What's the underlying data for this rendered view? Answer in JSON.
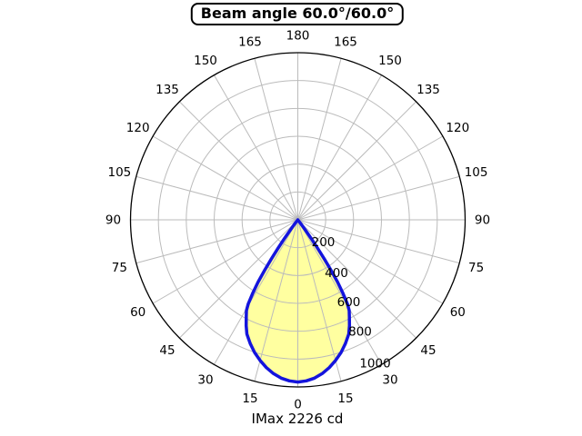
{
  "chart_data": {
    "type": "polar",
    "title": "Beam angle 60.0°/60.0°",
    "footer": "IMax 2226 cd",
    "imax_cd": 2226,
    "beam_angle_deg": [
      60.0,
      60.0
    ],
    "orientation": "0 deg at bottom, 180 deg at top, mirrored left/right",
    "angular_tick_step_deg": 15,
    "angular_tick_labels": [
      "0",
      "15",
      "30",
      "45",
      "60",
      "75",
      "90",
      "105",
      "120",
      "135",
      "150",
      "165",
      "180"
    ],
    "radial_tick_values": [
      200,
      400,
      600,
      800,
      1000
    ],
    "radial_grid_step": 200,
    "radial_max": 1200,
    "grid": true,
    "colors": {
      "beam_fill": "#ffffa0",
      "beam_stroke": "#1414dd",
      "grid": "#bbbbbb",
      "outer_ring": "#000000",
      "text": "#000000",
      "title_border": "#000000",
      "background": "#ffffff"
    },
    "series": [
      {
        "name": "luminous-intensity-distribution",
        "symmetric": true,
        "profile_deg_value": [
          [
            0,
            1165
          ],
          [
            3,
            1158
          ],
          [
            6,
            1143
          ],
          [
            9,
            1118
          ],
          [
            12,
            1085
          ],
          [
            15,
            1045
          ],
          [
            18,
            1002
          ],
          [
            21,
            952
          ],
          [
            24,
            898
          ],
          [
            26,
            845
          ],
          [
            28,
            788
          ],
          [
            29.5,
            748
          ],
          [
            30.5,
            700
          ],
          [
            31.5,
            622
          ],
          [
            32.5,
            530
          ],
          [
            33.3,
            432
          ],
          [
            34,
            340
          ],
          [
            34.8,
            250
          ],
          [
            35.6,
            162
          ],
          [
            36.4,
            88
          ],
          [
            37.2,
            34
          ],
          [
            38,
            0
          ]
        ]
      }
    ]
  }
}
